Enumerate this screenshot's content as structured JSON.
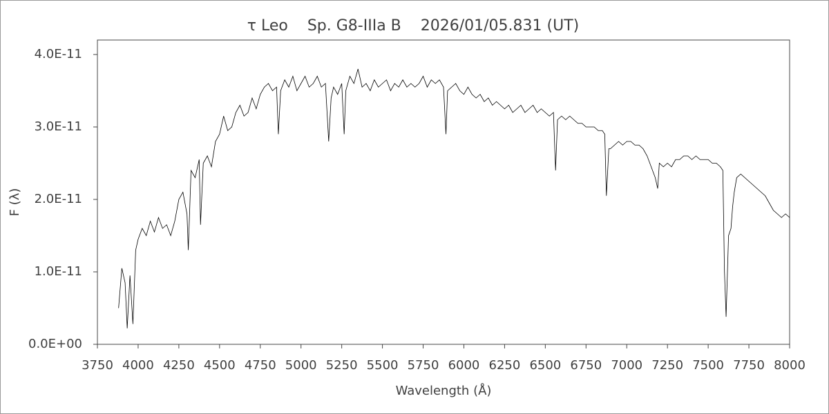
{
  "chart_data": {
    "type": "line",
    "title": "τ Leo    Sp. G8-IIIa B    2026/01/05.831 (UT)",
    "x_label": "Wavelength (Å)",
    "y_label": "F (λ)",
    "color": "#000000",
    "xlim": [
      3750,
      8000
    ],
    "xticks": [
      3750,
      4000,
      4250,
      4500,
      4750,
      5000,
      5250,
      5500,
      5750,
      6000,
      6250,
      6500,
      6750,
      7000,
      7250,
      7500,
      7750,
      8000
    ],
    "ylim": [
      0,
      4.2e-11
    ],
    "yticks": [
      {
        "value": 0,
        "label": "0.0E+00"
      },
      {
        "value": 1e-11,
        "label": "1.0E-11"
      },
      {
        "value": 2e-11,
        "label": "2.0E-11"
      },
      {
        "value": 3e-11,
        "label": "3.0E-11"
      },
      {
        "value": 4e-11,
        "label": "4.0E-11"
      }
    ],
    "x": [
      3880,
      3900,
      3920,
      3933,
      3950,
      3968,
      3985,
      4000,
      4025,
      4050,
      4075,
      4100,
      4125,
      4150,
      4175,
      4200,
      4225,
      4250,
      4275,
      4300,
      4308,
      4325,
      4350,
      4375,
      4383,
      4400,
      4425,
      4450,
      4475,
      4500,
      4525,
      4550,
      4575,
      4600,
      4625,
      4650,
      4675,
      4700,
      4725,
      4750,
      4775,
      4800,
      4825,
      4850,
      4861,
      4875,
      4900,
      4925,
      4950,
      4975,
      5000,
      5025,
      5050,
      5075,
      5100,
      5125,
      5150,
      5170,
      5185,
      5200,
      5225,
      5250,
      5265,
      5275,
      5300,
      5325,
      5350,
      5375,
      5400,
      5425,
      5450,
      5475,
      5500,
      5525,
      5550,
      5575,
      5600,
      5625,
      5650,
      5675,
      5700,
      5725,
      5750,
      5775,
      5800,
      5825,
      5850,
      5875,
      5890,
      5900,
      5925,
      5950,
      5975,
      6000,
      6025,
      6050,
      6075,
      6100,
      6125,
      6150,
      6175,
      6200,
      6225,
      6250,
      6275,
      6300,
      6325,
      6350,
      6375,
      6400,
      6425,
      6450,
      6475,
      6500,
      6525,
      6550,
      6563,
      6575,
      6600,
      6625,
      6650,
      6675,
      6700,
      6725,
      6750,
      6775,
      6800,
      6825,
      6850,
      6865,
      6875,
      6890,
      6900,
      6925,
      6950,
      6975,
      7000,
      7025,
      7050,
      7075,
      7100,
      7125,
      7150,
      7175,
      7190,
      7200,
      7225,
      7250,
      7275,
      7300,
      7325,
      7350,
      7375,
      7400,
      7425,
      7450,
      7475,
      7500,
      7525,
      7550,
      7575,
      7590,
      7600,
      7610,
      7625,
      7640,
      7650,
      7660,
      7675,
      7700,
      7725,
      7750,
      7775,
      7800,
      7825,
      7850,
      7875,
      7900,
      7925,
      7950,
      7975,
      8000
    ],
    "values": [
      5e-12,
      1.05e-11,
      8.5e-12,
      2.2e-12,
      9.5e-12,
      2.8e-12,
      1.3e-11,
      1.45e-11,
      1.6e-11,
      1.5e-11,
      1.7e-11,
      1.55e-11,
      1.75e-11,
      1.6e-11,
      1.65e-11,
      1.5e-11,
      1.7e-11,
      2e-11,
      2.1e-11,
      1.8e-11,
      1.3e-11,
      2.4e-11,
      2.3e-11,
      2.55e-11,
      1.65e-11,
      2.5e-11,
      2.6e-11,
      2.45e-11,
      2.8e-11,
      2.9e-11,
      3.15e-11,
      2.95e-11,
      3e-11,
      3.2e-11,
      3.3e-11,
      3.15e-11,
      3.2e-11,
      3.4e-11,
      3.25e-11,
      3.45e-11,
      3.55e-11,
      3.6e-11,
      3.5e-11,
      3.55e-11,
      2.9e-11,
      3.5e-11,
      3.65e-11,
      3.55e-11,
      3.7e-11,
      3.5e-11,
      3.6e-11,
      3.7e-11,
      3.55e-11,
      3.6e-11,
      3.7e-11,
      3.55e-11,
      3.6e-11,
      2.8e-11,
      3.4e-11,
      3.55e-11,
      3.45e-11,
      3.6e-11,
      2.9e-11,
      3.5e-11,
      3.7e-11,
      3.6e-11,
      3.8e-11,
      3.55e-11,
      3.6e-11,
      3.5e-11,
      3.65e-11,
      3.55e-11,
      3.6e-11,
      3.65e-11,
      3.5e-11,
      3.6e-11,
      3.55e-11,
      3.65e-11,
      3.55e-11,
      3.6e-11,
      3.55e-11,
      3.6e-11,
      3.7e-11,
      3.55e-11,
      3.65e-11,
      3.6e-11,
      3.65e-11,
      3.55e-11,
      2.9e-11,
      3.5e-11,
      3.55e-11,
      3.6e-11,
      3.5e-11,
      3.45e-11,
      3.55e-11,
      3.45e-11,
      3.4e-11,
      3.45e-11,
      3.35e-11,
      3.4e-11,
      3.3e-11,
      3.35e-11,
      3.3e-11,
      3.25e-11,
      3.3e-11,
      3.2e-11,
      3.25e-11,
      3.3e-11,
      3.2e-11,
      3.25e-11,
      3.3e-11,
      3.2e-11,
      3.25e-11,
      3.2e-11,
      3.15e-11,
      3.2e-11,
      2.4e-11,
      3.1e-11,
      3.15e-11,
      3.1e-11,
      3.15e-11,
      3.1e-11,
      3.05e-11,
      3.05e-11,
      3e-11,
      3e-11,
      3e-11,
      2.95e-11,
      2.95e-11,
      2.9e-11,
      2.05e-11,
      2.7e-11,
      2.7e-11,
      2.75e-11,
      2.8e-11,
      2.75e-11,
      2.8e-11,
      2.8e-11,
      2.75e-11,
      2.75e-11,
      2.7e-11,
      2.6e-11,
      2.45e-11,
      2.3e-11,
      2.15e-11,
      2.5e-11,
      2.45e-11,
      2.5e-11,
      2.45e-11,
      2.55e-11,
      2.55e-11,
      2.6e-11,
      2.6e-11,
      2.55e-11,
      2.6e-11,
      2.55e-11,
      2.55e-11,
      2.55e-11,
      2.5e-11,
      2.5e-11,
      2.45e-11,
      2.4e-11,
      1e-11,
      3.8e-12,
      1.5e-11,
      1.6e-11,
      1.9e-11,
      2.1e-11,
      2.3e-11,
      2.35e-11,
      2.3e-11,
      2.25e-11,
      2.2e-11,
      2.15e-11,
      2.1e-11,
      2.05e-11,
      1.95e-11,
      1.85e-11,
      1.8e-11,
      1.75e-11,
      1.8e-11,
      1.75e-11
    ]
  }
}
